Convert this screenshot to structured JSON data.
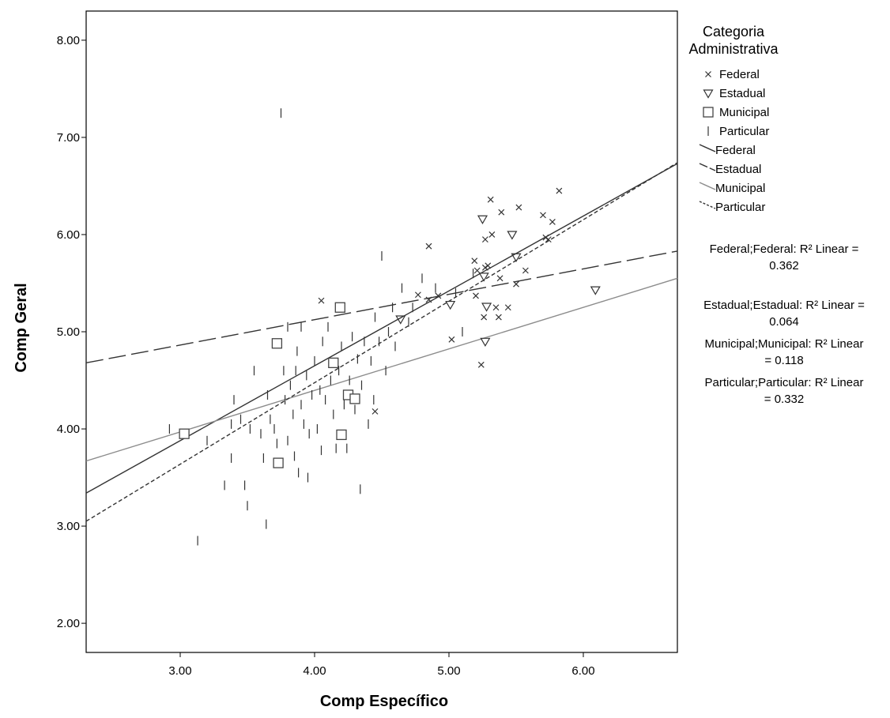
{
  "chart_data": {
    "type": "scatter",
    "xlabel": "Comp Específico",
    "ylabel": "Comp Geral",
    "xlim": [
      2.3,
      6.7
    ],
    "ylim": [
      1.7,
      8.3
    ],
    "xticks": [
      "3.00",
      "4.00",
      "5.00",
      "6.00"
    ],
    "xtick_values": [
      3,
      4,
      5,
      6
    ],
    "yticks": [
      "2.00",
      "3.00",
      "4.00",
      "5.00",
      "6.00",
      "7.00",
      "8.00"
    ],
    "ytick_values": [
      2,
      3,
      4,
      5,
      6,
      7,
      8
    ],
    "grid": false,
    "legend": {
      "title_line1": "Categoria",
      "title_line2": "Administrativa",
      "position": "right",
      "marker_entries": [
        {
          "label": "Federal",
          "marker": "x"
        },
        {
          "label": "Estadual",
          "marker": "triangle-down"
        },
        {
          "label": "Municipal",
          "marker": "square"
        },
        {
          "label": "Particular",
          "marker": "vline"
        }
      ],
      "line_entries": [
        {
          "label": "Federal",
          "style": "solid"
        },
        {
          "label": "Estadual",
          "style": "long-dash"
        },
        {
          "label": "Municipal",
          "style": "solid-gray"
        },
        {
          "label": "Particular",
          "style": "dotted"
        }
      ]
    },
    "fit_labels": [
      {
        "line1": "Federal;Federal: R² Linear =",
        "line2": "0.362"
      },
      {
        "line1": "Estadual;Estadual: R² Linear =",
        "line2": "0.064"
      },
      {
        "line1": "Municipal;Municipal: R² Linear",
        "line2": "= 0.118"
      },
      {
        "line1": "Particular;Particular: R² Linear",
        "line2": "= 0.332"
      }
    ],
    "colors": {
      "black": "#000000",
      "gray": "#8c8c8c",
      "dark": "#333333"
    },
    "series": [
      {
        "name": "Federal",
        "marker": "x",
        "points": [
          [
            4.05,
            5.32
          ],
          [
            4.45,
            4.18
          ],
          [
            4.77,
            5.38
          ],
          [
            4.85,
            5.88
          ],
          [
            4.92,
            5.37
          ],
          [
            5.02,
            4.92
          ],
          [
            5.19,
            5.73
          ],
          [
            5.21,
            5.63
          ],
          [
            5.24,
            4.66
          ],
          [
            5.26,
            5.15
          ],
          [
            5.27,
            5.66
          ],
          [
            5.27,
            5.95
          ],
          [
            5.29,
            5.68
          ],
          [
            5.31,
            6.36
          ],
          [
            5.32,
            6.0
          ],
          [
            5.35,
            5.25
          ],
          [
            5.37,
            5.15
          ],
          [
            5.38,
            5.55
          ],
          [
            5.39,
            6.23
          ],
          [
            5.44,
            5.25
          ],
          [
            5.5,
            5.49
          ],
          [
            5.52,
            6.28
          ],
          [
            5.57,
            5.63
          ],
          [
            5.7,
            6.2
          ],
          [
            5.72,
            5.97
          ],
          [
            5.74,
            5.95
          ],
          [
            5.77,
            6.13
          ],
          [
            5.82,
            6.45
          ],
          [
            4.85,
            5.33
          ],
          [
            5.2,
            5.37
          ]
        ],
        "fit": {
          "x": [
            2.3,
            6.7
          ],
          "y": [
            3.34,
            6.73
          ]
        }
      },
      {
        "name": "Estadual",
        "marker": "triangle-down",
        "points": [
          [
            4.64,
            5.13
          ],
          [
            5.01,
            5.28
          ],
          [
            5.25,
            6.16
          ],
          [
            5.26,
            5.57
          ],
          [
            5.27,
            4.9
          ],
          [
            5.28,
            5.26
          ],
          [
            5.47,
            6.0
          ],
          [
            5.5,
            5.77
          ],
          [
            6.09,
            5.43
          ]
        ],
        "fit": {
          "x": [
            2.3,
            6.7
          ],
          "y": [
            4.68,
            5.83
          ]
        }
      },
      {
        "name": "Municipal",
        "marker": "square",
        "points": [
          [
            3.03,
            3.95
          ],
          [
            3.72,
            4.88
          ],
          [
            3.73,
            3.65
          ],
          [
            4.14,
            4.68
          ],
          [
            4.19,
            5.25
          ],
          [
            4.2,
            3.94
          ],
          [
            4.25,
            4.35
          ],
          [
            4.3,
            4.31
          ]
        ],
        "fit": {
          "x": [
            2.3,
            6.7
          ],
          "y": [
            3.67,
            5.55
          ]
        }
      },
      {
        "name": "Particular",
        "marker": "vline",
        "points": [
          [
            2.92,
            4.0
          ],
          [
            3.13,
            2.85
          ],
          [
            3.2,
            3.88
          ],
          [
            3.33,
            3.42
          ],
          [
            3.38,
            4.05
          ],
          [
            3.38,
            3.7
          ],
          [
            3.4,
            4.3
          ],
          [
            3.45,
            4.1
          ],
          [
            3.48,
            3.42
          ],
          [
            3.5,
            3.21
          ],
          [
            3.52,
            4.0
          ],
          [
            3.55,
            4.6
          ],
          [
            3.6,
            3.95
          ],
          [
            3.62,
            3.7
          ],
          [
            3.64,
            3.02
          ],
          [
            3.65,
            4.35
          ],
          [
            3.67,
            4.1
          ],
          [
            3.7,
            4.0
          ],
          [
            3.72,
            3.85
          ],
          [
            3.75,
            7.25
          ],
          [
            3.77,
            4.6
          ],
          [
            3.78,
            4.3
          ],
          [
            3.8,
            3.88
          ],
          [
            3.8,
            5.05
          ],
          [
            3.82,
            4.45
          ],
          [
            3.84,
            4.15
          ],
          [
            3.85,
            3.72
          ],
          [
            3.87,
            4.8
          ],
          [
            3.88,
            3.55
          ],
          [
            3.9,
            4.25
          ],
          [
            3.9,
            5.05
          ],
          [
            3.92,
            4.05
          ],
          [
            3.94,
            4.55
          ],
          [
            3.95,
            3.5
          ],
          [
            3.96,
            3.95
          ],
          [
            3.98,
            4.35
          ],
          [
            4.0,
            4.7
          ],
          [
            4.02,
            4.0
          ],
          [
            4.04,
            4.4
          ],
          [
            4.05,
            3.78
          ],
          [
            4.06,
            4.9
          ],
          [
            4.08,
            4.3
          ],
          [
            4.1,
            5.05
          ],
          [
            4.12,
            4.5
          ],
          [
            4.14,
            4.15
          ],
          [
            4.16,
            3.8
          ],
          [
            4.18,
            4.6
          ],
          [
            4.2,
            4.85
          ],
          [
            4.22,
            4.25
          ],
          [
            4.24,
            3.8
          ],
          [
            4.26,
            4.5
          ],
          [
            4.28,
            4.95
          ],
          [
            4.3,
            4.2
          ],
          [
            4.32,
            4.72
          ],
          [
            4.34,
            3.38
          ],
          [
            4.35,
            4.45
          ],
          [
            4.37,
            4.9
          ],
          [
            4.4,
            4.05
          ],
          [
            4.42,
            4.7
          ],
          [
            4.45,
            5.15
          ],
          [
            4.48,
            4.9
          ],
          [
            4.5,
            5.78
          ],
          [
            4.53,
            4.6
          ],
          [
            4.55,
            5.0
          ],
          [
            4.58,
            5.25
          ],
          [
            4.6,
            4.85
          ],
          [
            4.65,
            5.45
          ],
          [
            4.7,
            5.1
          ],
          [
            4.73,
            5.25
          ],
          [
            4.8,
            5.55
          ],
          [
            4.9,
            5.45
          ],
          [
            5.05,
            5.4
          ],
          [
            5.1,
            5.0
          ],
          [
            5.18,
            5.6
          ],
          [
            4.44,
            4.3
          ],
          [
            3.86,
            4.6
          ]
        ],
        "fit": {
          "x": [
            2.3,
            6.7
          ],
          "y": [
            3.05,
            6.74
          ]
        }
      }
    ]
  }
}
